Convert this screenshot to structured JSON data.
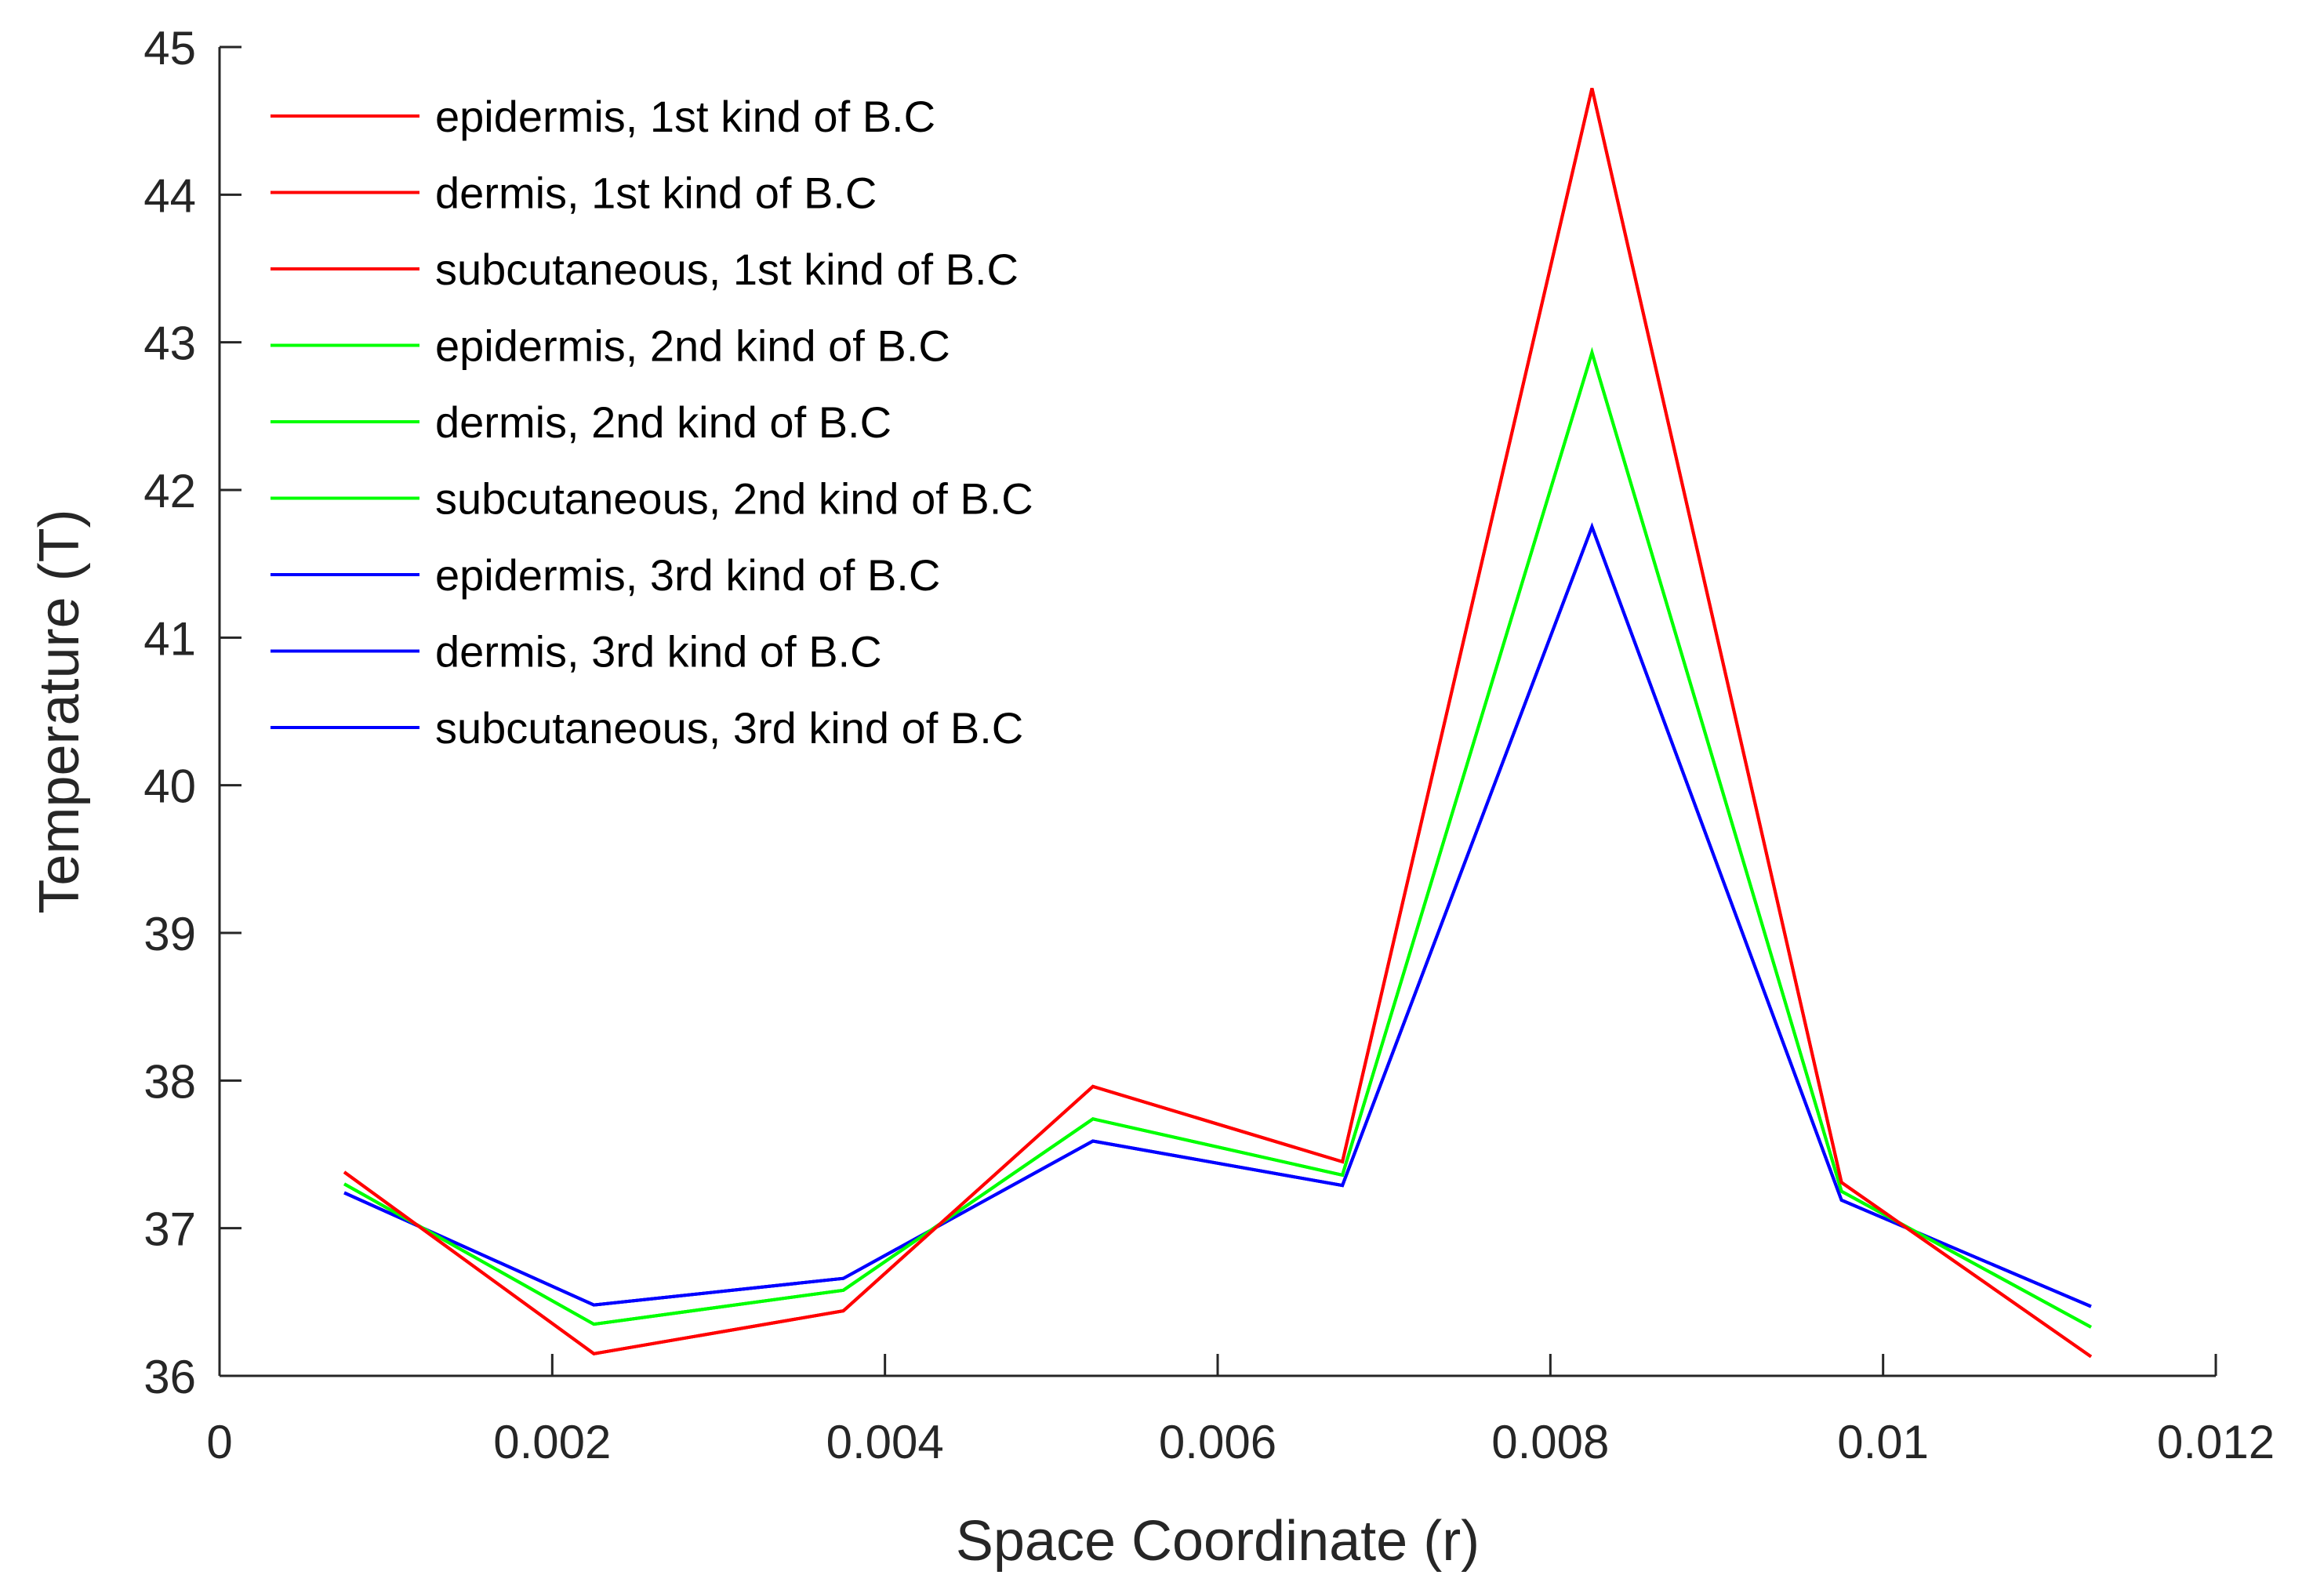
{
  "chart_data": {
    "type": "line",
    "xlabel": "Space Coordinate (r)",
    "ylabel": "Temperature (T)",
    "xlim": [
      0,
      0.012
    ],
    "ylim": [
      36,
      45
    ],
    "x_ticks": [
      0,
      0.002,
      0.004,
      0.006,
      0.008,
      0.01,
      0.012
    ],
    "x_tick_labels": [
      "0",
      "0.002",
      "0.004",
      "0.006",
      "0.008",
      "0.01",
      "0.012"
    ],
    "y_ticks": [
      36,
      37,
      38,
      39,
      40,
      41,
      42,
      43,
      44,
      45
    ],
    "y_tick_labels": [
      "36",
      "37",
      "38",
      "39",
      "40",
      "41",
      "42",
      "43",
      "44",
      "45"
    ],
    "grid": false,
    "legend_position": "top-left",
    "x": [
      0.00075,
      0.00225,
      0.00375,
      0.00525,
      0.00675,
      0.00825,
      0.00975,
      0.01125
    ],
    "series": [
      {
        "name": "epidermis, 1st kind of B.C",
        "color": "#ff0000",
        "values": [
          37.38,
          36.15,
          36.44,
          37.96,
          37.45,
          44.72,
          37.31,
          36.13
        ]
      },
      {
        "name": "dermis, 1st kind of B.C",
        "color": "#ff0000",
        "values": [
          37.38,
          36.15,
          36.44,
          37.96,
          37.45,
          44.72,
          37.31,
          36.13
        ]
      },
      {
        "name": "subcutaneous, 1st kind of B.C",
        "color": "#ff0000",
        "values": [
          37.38,
          36.15,
          36.44,
          37.96,
          37.45,
          44.72,
          37.31,
          36.13
        ]
      },
      {
        "name": "epidermis, 2nd kind of B.C",
        "color": "#00ff00",
        "values": [
          37.3,
          36.35,
          36.58,
          37.74,
          37.36,
          42.93,
          37.25,
          36.33
        ]
      },
      {
        "name": "dermis, 2nd kind of B.C",
        "color": "#00ff00",
        "values": [
          37.3,
          36.35,
          36.58,
          37.74,
          37.36,
          42.93,
          37.25,
          36.33
        ]
      },
      {
        "name": "subcutaneous, 2nd kind of B.C",
        "color": "#00ff00",
        "values": [
          37.3,
          36.35,
          36.58,
          37.74,
          37.36,
          42.93,
          37.25,
          36.33
        ]
      },
      {
        "name": "epidermis, 3rd kind of B.C",
        "color": "#0000ff",
        "values": [
          37.24,
          36.48,
          36.66,
          37.59,
          37.29,
          41.75,
          37.19,
          36.47
        ]
      },
      {
        "name": "dermis, 3rd kind of B.C",
        "color": "#0000ff",
        "values": [
          37.24,
          36.48,
          36.66,
          37.59,
          37.29,
          41.75,
          37.19,
          36.47
        ]
      },
      {
        "name": "subcutaneous, 3rd kind of B.C",
        "color": "#0000ff",
        "values": [
          37.24,
          36.48,
          36.66,
          37.59,
          37.29,
          41.75,
          37.19,
          36.47
        ]
      }
    ]
  }
}
